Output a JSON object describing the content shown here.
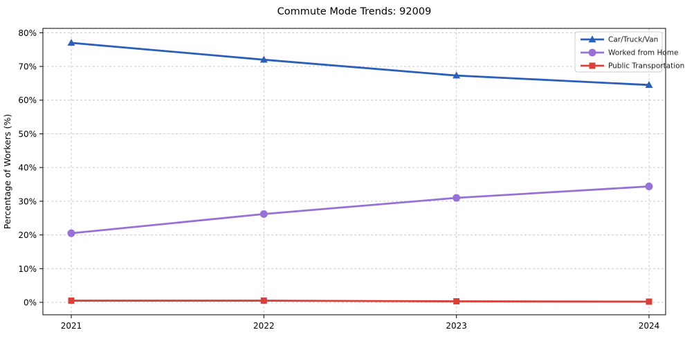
{
  "figure": {
    "title": "Commute Mode Trends: 92009",
    "ylabel": "Percentage of Workers (%)"
  },
  "chart_data": {
    "type": "line",
    "title": "Commute Mode Trends: 92009",
    "xlabel": "",
    "ylabel": "Percentage of Workers (%)",
    "x": [
      2021,
      2022,
      2023,
      2024
    ],
    "xtick_labels": [
      "2021",
      "2022",
      "2023",
      "2024"
    ],
    "series": [
      {
        "name": "Car/Truck/Van",
        "color": "#2b5fb8",
        "marker": "triangle",
        "values": [
          77.0,
          72.0,
          67.3,
          64.5
        ]
      },
      {
        "name": "Worked from Home",
        "color": "#9771d6",
        "marker": "circle",
        "values": [
          20.5,
          26.2,
          31.0,
          34.4
        ]
      },
      {
        "name": "Public Transportation",
        "color": "#d9403a",
        "marker": "square",
        "values": [
          0.5,
          0.5,
          0.3,
          0.2
        ]
      }
    ],
    "yticks": [
      0,
      10,
      20,
      30,
      40,
      50,
      60,
      70,
      80
    ],
    "ytick_labels": [
      "0%",
      "10%",
      "20%",
      "30%",
      "40%",
      "50%",
      "60%",
      "70%",
      "80%"
    ],
    "ylim": [
      -3.7,
      81.3
    ],
    "grid": true,
    "grid_style": "dashed",
    "grid_color": "#c9c9c9",
    "spine_color": "#000000",
    "legend_position": "upper right",
    "legend_border_color": "#cccccc"
  }
}
